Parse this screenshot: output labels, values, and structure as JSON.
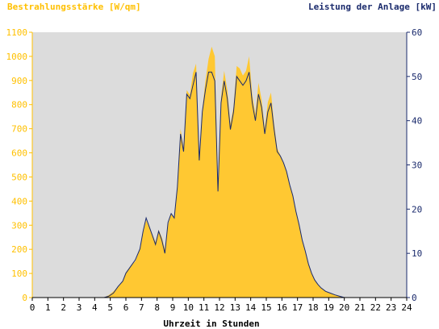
{
  "chart_data": {
    "type": "area",
    "left_axis_title": "Bestrahlungsstärke [W/qm]",
    "right_axis_title": "Leistung der Anlage [kW]",
    "xlabel": "Uhrzeit in Stunden",
    "x_ticks": [
      "0",
      "1",
      "2",
      "3",
      "4",
      "5",
      "6",
      "7",
      "8",
      "9",
      "10",
      "11",
      "12",
      "13",
      "14",
      "15",
      "16",
      "17",
      "18",
      "19",
      "20",
      "21",
      "22",
      "23",
      "24"
    ],
    "y_left_ticks": [
      "0",
      "100",
      "200",
      "300",
      "400",
      "500",
      "600",
      "700",
      "800",
      "900",
      "1000",
      "1100"
    ],
    "y_right_ticks": [
      "0",
      "10",
      "20",
      "30",
      "40",
      "50",
      "60"
    ],
    "xlim": [
      0,
      24
    ],
    "ylim_left": [
      0,
      1100
    ],
    "ylim_right": [
      0,
      60
    ],
    "colors": {
      "irradiance": "#ffc832",
      "power": "#1a2a6c",
      "plot_bg": "#dcdcdc",
      "left_axis": "#ffc000",
      "right_axis": "#1a2a6c"
    },
    "series": [
      {
        "name": "Bestrahlungsstärke [W/qm]",
        "axis": "left",
        "points": [
          [
            0,
            0
          ],
          [
            4.6,
            0
          ],
          [
            4.9,
            10
          ],
          [
            5.2,
            25
          ],
          [
            5.5,
            45
          ],
          [
            5.8,
            70
          ],
          [
            6.0,
            105
          ],
          [
            6.3,
            130
          ],
          [
            6.6,
            150
          ],
          [
            6.9,
            200
          ],
          [
            7.1,
            270
          ],
          [
            7.3,
            320
          ],
          [
            7.5,
            290
          ],
          [
            7.7,
            260
          ],
          [
            7.9,
            230
          ],
          [
            8.1,
            280
          ],
          [
            8.3,
            250
          ],
          [
            8.5,
            200
          ],
          [
            8.7,
            300
          ],
          [
            8.9,
            350
          ],
          [
            9.1,
            330
          ],
          [
            9.3,
            450
          ],
          [
            9.5,
            700
          ],
          [
            9.7,
            620
          ],
          [
            9.9,
            860
          ],
          [
            10.1,
            840
          ],
          [
            10.3,
            930
          ],
          [
            10.5,
            970
          ],
          [
            10.7,
            580
          ],
          [
            10.9,
            780
          ],
          [
            11.1,
            900
          ],
          [
            11.3,
            990
          ],
          [
            11.5,
            1040
          ],
          [
            11.7,
            1000
          ],
          [
            11.9,
            450
          ],
          [
            12.1,
            830
          ],
          [
            12.3,
            940
          ],
          [
            12.5,
            860
          ],
          [
            12.7,
            720
          ],
          [
            12.9,
            790
          ],
          [
            13.1,
            960
          ],
          [
            13.3,
            950
          ],
          [
            13.5,
            920
          ],
          [
            13.7,
            940
          ],
          [
            13.9,
            1000
          ],
          [
            14.1,
            840
          ],
          [
            14.3,
            760
          ],
          [
            14.5,
            890
          ],
          [
            14.7,
            820
          ],
          [
            14.9,
            700
          ],
          [
            15.1,
            810
          ],
          [
            15.3,
            850
          ],
          [
            15.5,
            720
          ],
          [
            15.7,
            620
          ],
          [
            15.9,
            590
          ],
          [
            16.1,
            560
          ],
          [
            16.3,
            520
          ],
          [
            16.5,
            470
          ],
          [
            16.7,
            420
          ],
          [
            16.9,
            360
          ],
          [
            17.1,
            300
          ],
          [
            17.3,
            240
          ],
          [
            17.5,
            190
          ],
          [
            17.7,
            140
          ],
          [
            17.9,
            100
          ],
          [
            18.1,
            75
          ],
          [
            18.3,
            55
          ],
          [
            18.5,
            40
          ],
          [
            18.8,
            25
          ],
          [
            19.1,
            18
          ],
          [
            19.4,
            12
          ],
          [
            19.7,
            6
          ],
          [
            20.0,
            0
          ],
          [
            24,
            0
          ]
        ]
      },
      {
        "name": "Leistung der Anlage [kW]",
        "axis": "right",
        "points": [
          [
            0,
            0
          ],
          [
            4.6,
            0
          ],
          [
            4.9,
            0.3
          ],
          [
            5.2,
            1
          ],
          [
            5.5,
            2.5
          ],
          [
            5.8,
            3.7
          ],
          [
            6.0,
            5.5
          ],
          [
            6.3,
            7
          ],
          [
            6.6,
            8.5
          ],
          [
            6.9,
            11
          ],
          [
            7.1,
            15
          ],
          [
            7.3,
            18
          ],
          [
            7.5,
            16
          ],
          [
            7.7,
            14
          ],
          [
            7.9,
            12
          ],
          [
            8.1,
            15
          ],
          [
            8.3,
            13
          ],
          [
            8.5,
            10
          ],
          [
            8.7,
            17
          ],
          [
            8.9,
            19
          ],
          [
            9.1,
            18
          ],
          [
            9.3,
            25
          ],
          [
            9.5,
            37
          ],
          [
            9.7,
            33
          ],
          [
            9.9,
            46
          ],
          [
            10.1,
            45
          ],
          [
            10.3,
            48
          ],
          [
            10.5,
            51
          ],
          [
            10.7,
            31
          ],
          [
            10.9,
            42
          ],
          [
            11.1,
            47
          ],
          [
            11.3,
            51
          ],
          [
            11.5,
            51
          ],
          [
            11.7,
            49
          ],
          [
            11.9,
            24
          ],
          [
            12.1,
            44
          ],
          [
            12.3,
            49
          ],
          [
            12.5,
            45
          ],
          [
            12.7,
            38
          ],
          [
            12.9,
            42
          ],
          [
            13.1,
            50
          ],
          [
            13.3,
            49
          ],
          [
            13.5,
            48
          ],
          [
            13.7,
            49
          ],
          [
            13.9,
            51
          ],
          [
            14.1,
            44
          ],
          [
            14.3,
            40
          ],
          [
            14.5,
            46
          ],
          [
            14.7,
            43
          ],
          [
            14.9,
            37
          ],
          [
            15.1,
            42
          ],
          [
            15.3,
            44
          ],
          [
            15.5,
            38
          ],
          [
            15.7,
            33
          ],
          [
            15.9,
            32
          ],
          [
            16.1,
            30.5
          ],
          [
            16.3,
            28.5
          ],
          [
            16.5,
            25.5
          ],
          [
            16.7,
            23
          ],
          [
            16.9,
            19.5
          ],
          [
            17.1,
            16.5
          ],
          [
            17.3,
            13
          ],
          [
            17.5,
            10.5
          ],
          [
            17.7,
            7.6
          ],
          [
            17.9,
            5.5
          ],
          [
            18.1,
            4
          ],
          [
            18.3,
            3
          ],
          [
            18.5,
            2.2
          ],
          [
            18.8,
            1.4
          ],
          [
            19.1,
            1
          ],
          [
            19.4,
            0.6
          ],
          [
            19.7,
            0.3
          ],
          [
            20.0,
            0
          ],
          [
            24,
            0
          ]
        ]
      }
    ]
  }
}
